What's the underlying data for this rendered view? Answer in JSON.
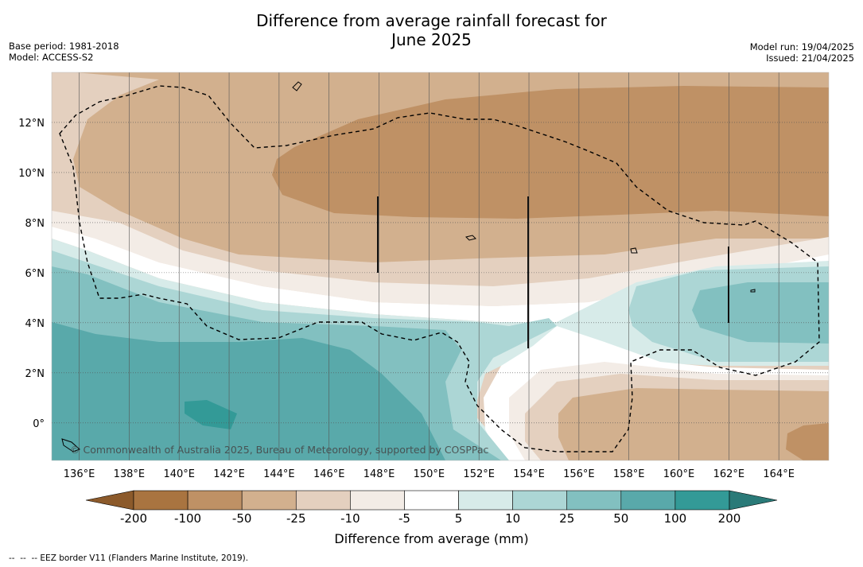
{
  "title_line1": "Difference from average rainfall forecast for",
  "title_line2": "June 2025",
  "meta": {
    "base_period": "Base period: 1981-2018",
    "model": "Model: ACCESS-S2",
    "model_run": "Model run: 19/04/2025",
    "issued": "Issued: 21/04/2025"
  },
  "map": {
    "copyright": "© Commonwealth of Australia 2025, Bureau of Meteorology, supported by COSPPac",
    "x_ticks": [
      "136°E",
      "138°E",
      "140°E",
      "142°E",
      "144°E",
      "146°E",
      "148°E",
      "150°E",
      "152°E",
      "154°E",
      "156°E",
      "158°E",
      "160°E",
      "162°E",
      "164°E"
    ],
    "y_ticks": [
      "12°N",
      "10°N",
      "8°N",
      "6°N",
      "4°N",
      "2°N",
      "0°"
    ],
    "lon_range": [
      134.9,
      166.0
    ],
    "lat_range": [
      -1.5,
      14.0
    ]
  },
  "legend": {
    "title": "Difference from average (mm)",
    "bounds": [
      "-200",
      "-100",
      "-50",
      "-25",
      "-10",
      "-5",
      "5",
      "10",
      "25",
      "50",
      "100",
      "200"
    ],
    "colors": [
      "#8c5a2b",
      "#a97440",
      "#bf9165",
      "#d2b08e",
      "#e4d0bf",
      "#f3ece6",
      "#ffffff",
      "#d7ebe9",
      "#acd6d5",
      "#82c0c0",
      "#59a9aa",
      "#339a97",
      "#2a7a78"
    ]
  },
  "footnote": "--  --  -- EEZ border V11 (Flanders Marine Institute, 2019)."
}
